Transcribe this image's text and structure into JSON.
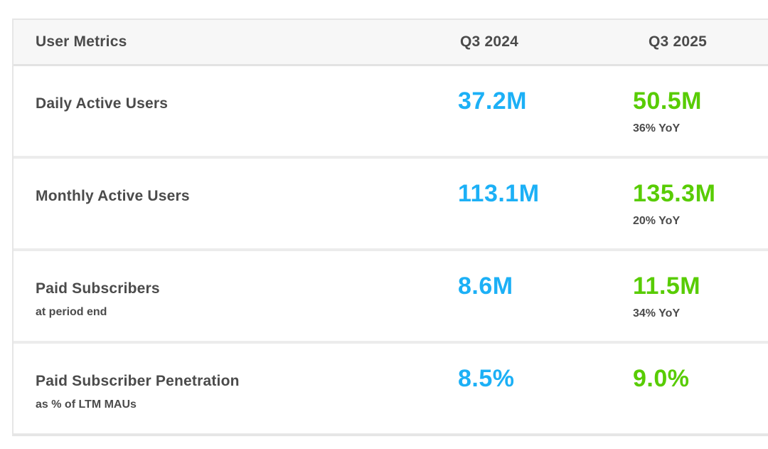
{
  "table": {
    "header": {
      "metric_label": "User Metrics",
      "col_2024": "Q3 2024",
      "col_2025": "Q3 2025"
    },
    "rows": [
      {
        "label": "Daily Active Users",
        "sublabel": "",
        "q3_2024": "37.2M",
        "q3_2025": "50.5M",
        "yoy": "36% YoY"
      },
      {
        "label": "Monthly Active Users",
        "sublabel": "",
        "q3_2024": "113.1M",
        "q3_2025": "135.3M",
        "yoy": "20% YoY"
      },
      {
        "label": "Paid Subscribers",
        "sublabel": "at period end",
        "q3_2024": "8.6M",
        "q3_2025": "11.5M",
        "yoy": "34% YoY"
      },
      {
        "label": "Paid Subscriber Penetration",
        "sublabel": "as % of LTM MAUs",
        "q3_2024": "8.5%",
        "q3_2025": "9.0%",
        "yoy": ""
      }
    ]
  },
  "colors": {
    "value_2024": "#1cb0f6",
    "value_2025": "#58cc02",
    "text_dark": "#4b4b4b",
    "header_bg": "#f7f7f7",
    "border": "#e6e6e6",
    "border_header": "#e3e3e3",
    "border_row": "#ececec"
  },
  "chart_data": {
    "type": "table",
    "title": "User Metrics",
    "columns": [
      "User Metrics",
      "Q3 2024",
      "Q3 2025"
    ],
    "rows": [
      {
        "metric": "Daily Active Users",
        "note": "",
        "q3_2024": 37.2,
        "q3_2025": 50.5,
        "unit": "M",
        "yoy_growth_pct": 36
      },
      {
        "metric": "Monthly Active Users",
        "note": "",
        "q3_2024": 113.1,
        "q3_2025": 135.3,
        "unit": "M",
        "yoy_growth_pct": 20
      },
      {
        "metric": "Paid Subscribers",
        "note": "at period end",
        "q3_2024": 8.6,
        "q3_2025": 11.5,
        "unit": "M",
        "yoy_growth_pct": 34
      },
      {
        "metric": "Paid Subscriber Penetration",
        "note": "as % of LTM MAUs",
        "q3_2024": 8.5,
        "q3_2025": 9.0,
        "unit": "%",
        "yoy_growth_pct": null
      }
    ],
    "layout": {
      "value_color_q3_2024": "#1cb0f6",
      "value_color_q3_2025": "#58cc02",
      "header_background": "#f7f7f7"
    }
  }
}
